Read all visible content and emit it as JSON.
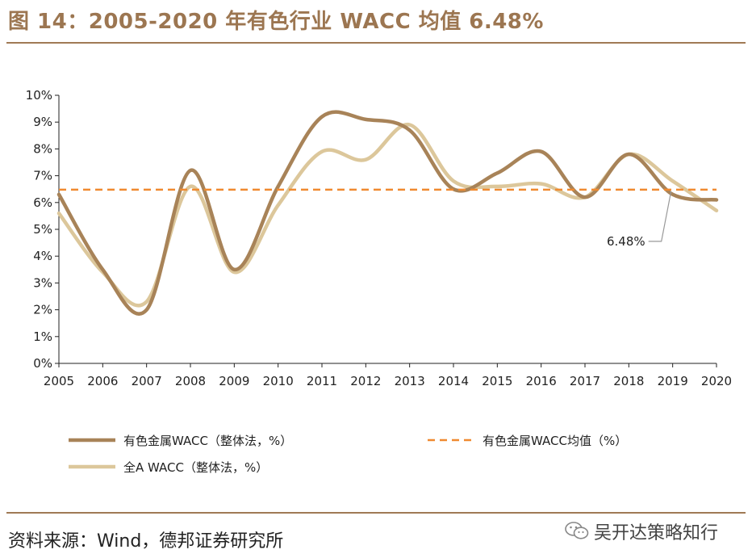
{
  "title": "图 14：2005-2020 年有色行业 WACC 均值 6.48%",
  "source": "资料来源：Wind，德邦证券研究所",
  "watermark": "吴开达策略知行",
  "colors": {
    "series1": "#a88358",
    "series2": "#dcc79b",
    "avg": "#f08a30",
    "frame": "#a07a55"
  },
  "chart_data": {
    "type": "line",
    "x": [
      "2005",
      "2006",
      "2007",
      "2008",
      "2009",
      "2010",
      "2011",
      "2012",
      "2013",
      "2014",
      "2015",
      "2016",
      "2017",
      "2018",
      "2019",
      "2020"
    ],
    "ylim": [
      0,
      10
    ],
    "yticks": [
      "0%",
      "1%",
      "2%",
      "3%",
      "4%",
      "5%",
      "6%",
      "7%",
      "8%",
      "9%",
      "10%"
    ],
    "series": [
      {
        "name": "有色金属WACC（整体法，%）",
        "style": "solid",
        "values": [
          6.3,
          3.5,
          2.0,
          7.2,
          3.5,
          6.6,
          9.2,
          9.1,
          8.7,
          6.5,
          7.1,
          7.9,
          6.2,
          7.8,
          6.3,
          6.1
        ]
      },
      {
        "name": "全A WACC（整体法，%）",
        "style": "solid",
        "values": [
          5.6,
          3.4,
          2.3,
          6.6,
          3.4,
          5.9,
          7.9,
          7.6,
          8.9,
          6.8,
          6.6,
          6.7,
          6.2,
          7.8,
          6.8,
          5.7
        ]
      },
      {
        "name": "有色金属WACC均值（%）",
        "style": "dashed",
        "values": [
          6.48,
          6.48,
          6.48,
          6.48,
          6.48,
          6.48,
          6.48,
          6.48,
          6.48,
          6.48,
          6.48,
          6.48,
          6.48,
          6.48,
          6.48,
          6.48
        ]
      }
    ],
    "annotation": {
      "text": "6.48%",
      "x": "2019",
      "y": 6.48
    },
    "legend": "bottom"
  }
}
